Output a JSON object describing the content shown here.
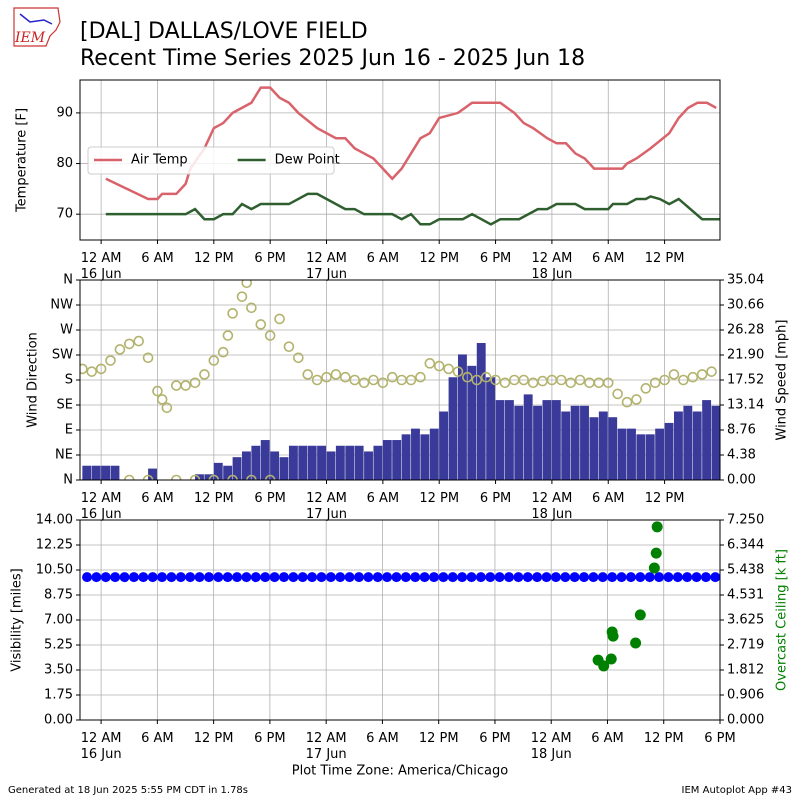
{
  "header": {
    "logo": "IEM",
    "title": [
      "[DAL] DALLAS/LOVE FIELD",
      "Recent Time Series 2025 Jun 16 - 2025 Jun 18"
    ]
  },
  "footer": {
    "left": "Generated at 18 Jun 2025 5:55 PM CDT in 1.78s",
    "right": "IEM Autoplot App #43"
  },
  "chart_data": [
    {
      "type": "line",
      "ylabel": "Temperature [F]",
      "xlim": [
        -2.25,
        65.9
      ],
      "ylim": [
        64.9,
        96.5
      ],
      "yticks": [
        70,
        80,
        90
      ],
      "grid": true,
      "legend": "center left",
      "xticks": [
        {
          "value": 0,
          "label": "12 AM\n16 Jun"
        },
        {
          "value": 6,
          "label": "6 AM"
        },
        {
          "value": 12,
          "label": "12 PM"
        },
        {
          "value": 18,
          "label": "6 PM"
        },
        {
          "value": 24,
          "label": "12 AM\n17 Jun"
        },
        {
          "value": 30,
          "label": "6 AM"
        },
        {
          "value": 36,
          "label": "12 PM"
        },
        {
          "value": 42,
          "label": "6 PM"
        },
        {
          "value": 48,
          "label": "12 AM\n18 Jun"
        },
        {
          "value": 54,
          "label": "6 AM"
        },
        {
          "value": 60,
          "label": "12 PM"
        }
      ],
      "series": [
        {
          "name": "Air Temp",
          "color": "#d9626b",
          "x": [
            0.5,
            5,
            6,
            6.5,
            8,
            9,
            9.5,
            11,
            12,
            13,
            14,
            16,
            17,
            18,
            19,
            20,
            21,
            23,
            25,
            26,
            27,
            28,
            29,
            31,
            32,
            34,
            35,
            36,
            38,
            39.5,
            42.5,
            44,
            45,
            46,
            47.5,
            48.5,
            49.5,
            50.5,
            51.5,
            52.5,
            55.5,
            56,
            57,
            58.5,
            60.5,
            61.5,
            62.5,
            63.5,
            64.5,
            65.5
          ],
          "values": [
            77,
            73,
            73,
            74,
            74,
            76,
            79,
            83,
            87,
            88,
            90,
            92,
            95,
            95,
            93,
            92,
            90,
            87,
            85,
            85,
            83,
            82,
            81,
            77,
            79,
            85,
            86,
            89,
            90,
            92,
            92,
            90,
            88,
            87,
            85,
            84,
            84,
            82,
            81,
            79,
            79,
            80,
            81,
            83,
            86,
            89,
            91,
            92,
            92,
            91
          ]
        },
        {
          "name": "Dew Point",
          "color": "#2f5f2f",
          "x": [
            0.5,
            9,
            10,
            11,
            12,
            13,
            14,
            15,
            16,
            17,
            20,
            22,
            23,
            26,
            27,
            28,
            31,
            32,
            33,
            34,
            35,
            36,
            38.5,
            39.5,
            41.5,
            42.5,
            44.5,
            46.5,
            47.5,
            48.5,
            50.5,
            51.5,
            54,
            54.5,
            56,
            57,
            58,
            58.5,
            59.5,
            60.5,
            61.5,
            64,
            66
          ],
          "values": [
            70,
            70,
            71,
            69,
            69,
            70,
            70,
            72,
            71,
            72,
            72,
            74,
            74,
            71,
            71,
            70,
            70,
            69,
            70,
            68,
            68,
            69,
            69,
            70,
            68,
            69,
            69,
            71,
            71,
            72,
            72,
            71,
            71,
            72,
            72,
            73,
            73,
            73.5,
            73,
            72,
            73,
            69,
            69
          ]
        }
      ]
    },
    {
      "type": "combo",
      "ylabel": "Wind Direction",
      "y2label": "Wind Speed [mph]",
      "xlim": [
        -2.25,
        65.9
      ],
      "ylim": [
        0,
        360
      ],
      "y2lim": [
        0,
        35.04
      ],
      "grid": true,
      "yticks": [
        {
          "value": 0,
          "label": "N"
        },
        {
          "value": 45,
          "label": "NE"
        },
        {
          "value": 90,
          "label": "E"
        },
        {
          "value": 135,
          "label": "SE"
        },
        {
          "value": 180,
          "label": "S"
        },
        {
          "value": 225,
          "label": "SW"
        },
        {
          "value": 270,
          "label": "W"
        },
        {
          "value": 315,
          "label": "NW"
        },
        {
          "value": 360,
          "label": "N"
        }
      ],
      "y2ticks": [
        {
          "value": 0,
          "label": "0.00"
        },
        4.38,
        8.76,
        13.14,
        17.52,
        {
          "value": 21.9,
          "label": "21.90"
        },
        26.28,
        30.66,
        35.04
      ],
      "xticks": [
        {
          "value": 0,
          "label": "12 AM\n16 Jun"
        },
        {
          "value": 6,
          "label": "6 AM"
        },
        {
          "value": 12,
          "label": "12 PM"
        },
        {
          "value": 18,
          "label": "6 PM"
        },
        {
          "value": 24,
          "label": "12 AM\n17 Jun"
        },
        {
          "value": 30,
          "label": "6 AM"
        },
        {
          "value": 36,
          "label": "12 PM"
        },
        {
          "value": 42,
          "label": "6 PM"
        },
        {
          "value": 48,
          "label": "12 AM\n18 Jun"
        },
        {
          "value": 54,
          "label": "6 AM"
        },
        {
          "value": 60,
          "label": "12 PM"
        }
      ],
      "series": [
        {
          "type": "bar",
          "axis": "y2",
          "color": "#3a3a9a",
          "x": [
            -2,
            -1,
            0,
            1,
            2,
            3,
            4,
            5,
            6,
            7,
            8,
            9,
            10,
            11,
            12,
            13,
            14,
            15,
            16,
            17,
            18,
            19,
            20,
            21,
            22,
            23,
            24,
            25,
            26,
            27,
            28,
            29,
            30,
            31,
            32,
            33,
            34,
            35,
            36,
            37,
            38,
            39,
            40,
            41,
            42,
            43,
            44,
            45,
            46,
            47,
            48,
            49,
            50,
            51,
            52,
            53,
            54,
            55,
            56,
            57,
            58,
            59,
            60,
            61,
            62,
            63,
            64,
            65
          ],
          "values": [
            2.5,
            2.5,
            2.5,
            2.5,
            0,
            0,
            0,
            2,
            0,
            0,
            0,
            0,
            1,
            1,
            3,
            2.5,
            4,
            5,
            6,
            7,
            5,
            4,
            6,
            6,
            6,
            6,
            5,
            6,
            6,
            6,
            5,
            6,
            7,
            7,
            8,
            9,
            8,
            9,
            12,
            18,
            22,
            20,
            24,
            18,
            14,
            14,
            13,
            15,
            13,
            14,
            14,
            12,
            13,
            13,
            11,
            12,
            11,
            9,
            9,
            8,
            8,
            9,
            10,
            12,
            13,
            12,
            14,
            13
          ]
        },
        {
          "type": "scatter",
          "color": "#b3b36e",
          "marker": "hollow",
          "x": [
            -2,
            -1,
            0,
            1,
            2,
            3,
            4,
            5,
            6,
            6.5,
            7,
            3,
            5,
            8,
            10,
            12,
            14,
            16,
            18,
            8,
            9,
            10,
            11,
            12,
            13,
            13.5,
            14,
            15,
            15.5,
            16,
            17,
            18,
            19,
            20,
            21,
            22,
            23,
            24,
            25,
            26,
            27,
            28,
            29,
            30,
            31,
            32,
            33,
            34,
            35,
            36,
            37,
            38,
            39,
            40,
            41,
            42,
            43,
            44,
            45,
            46,
            47,
            48,
            49,
            50,
            51,
            52,
            53,
            54,
            55,
            56,
            57,
            58,
            59,
            60,
            61,
            62,
            63,
            64,
            65
          ],
          "values": [
            200,
            195,
            200,
            215,
            235,
            245,
            250,
            220,
            160,
            145,
            130,
            0,
            0,
            0,
            0,
            0,
            0,
            0,
            0,
            170,
            170,
            175,
            190,
            215,
            230,
            260,
            300,
            330,
            355,
            310,
            280,
            260,
            290,
            240,
            220,
            190,
            180,
            185,
            190,
            185,
            180,
            175,
            180,
            175,
            185,
            180,
            180,
            185,
            210,
            205,
            200,
            195,
            185,
            180,
            185,
            180,
            175,
            180,
            180,
            175,
            178,
            180,
            180,
            175,
            180,
            175,
            175,
            175,
            155,
            140,
            145,
            165,
            175,
            180,
            190,
            180,
            185,
            190,
            195
          ]
        }
      ]
    },
    {
      "type": "scatter",
      "ylabel": "Visibility [miles]",
      "y2label": "Overcast Ceiling [k ft]",
      "y2label_color": "#008000",
      "xlabel": "Plot Time Zone: America/Chicago",
      "xlim": [
        -2.25,
        66
      ],
      "ylim": [
        0,
        14
      ],
      "y2lim": [
        0,
        7.25
      ],
      "grid": true,
      "yticks": [
        {
          "value": 0,
          "label": "0.00"
        },
        1.75,
        {
          "value": 3.5,
          "label": "3.50"
        },
        5.25,
        {
          "value": 7,
          "label": "7.00"
        },
        8.75,
        {
          "value": 10.5,
          "label": "10.50"
        },
        12.25,
        {
          "value": 14,
          "label": "14.00"
        }
      ],
      "y2ticks": [
        {
          "value": 0,
          "label": "0.000"
        },
        0.906,
        1.812,
        2.719,
        3.625,
        4.531,
        5.438,
        6.344,
        {
          "value": 7.25,
          "label": "7.250"
        }
      ],
      "xticks": [
        {
          "value": 0,
          "label": "12 AM\n16 Jun"
        },
        {
          "value": 6,
          "label": "6 AM"
        },
        {
          "value": 12,
          "label": "12 PM"
        },
        {
          "value": 18,
          "label": "6 PM"
        },
        {
          "value": 24,
          "label": "12 AM\n17 Jun"
        },
        {
          "value": 30,
          "label": "6 AM"
        },
        {
          "value": 36,
          "label": "12 PM"
        },
        {
          "value": 42,
          "label": "6 PM"
        },
        {
          "value": 48,
          "label": "12 AM\n18 Jun"
        },
        {
          "value": 54,
          "label": "6 AM"
        },
        {
          "value": 60,
          "label": "12 PM"
        },
        {
          "value": 66,
          "label": "6 PM"
        }
      ],
      "series": [
        {
          "type": "scatter",
          "color": "#0000ff",
          "x": [
            -1.5,
            -0.5,
            0.5,
            1.5,
            2.5,
            3.5,
            4.5,
            5.5,
            6.5,
            7.5,
            8.5,
            9.5,
            10.5,
            11.5,
            12.5,
            13.5,
            14.5,
            15.5,
            16.5,
            17.5,
            18.5,
            19.5,
            20.5,
            21.5,
            22.5,
            23.5,
            24.5,
            25.5,
            26.5,
            27.5,
            28.5,
            29.5,
            30.5,
            31.5,
            32.5,
            33.5,
            34.5,
            35.5,
            36.5,
            37.5,
            38.5,
            39.5,
            40.5,
            41.5,
            42.5,
            43.5,
            44.5,
            45.5,
            46.5,
            47.5,
            48.5,
            49.5,
            50.5,
            51.5,
            52.5,
            53.5,
            54.5,
            55.5,
            56.5,
            57.5,
            58.5,
            59.5,
            60.5,
            61.5,
            62.5,
            63.5,
            64.5,
            65.5
          ],
          "values": [
            10,
            10,
            10,
            10,
            10,
            10,
            10,
            10,
            10,
            10,
            10,
            10,
            10,
            10,
            10,
            10,
            10,
            10,
            10,
            10,
            10,
            10,
            10,
            10,
            10,
            10,
            10,
            10,
            10,
            10,
            10,
            10,
            10,
            10,
            10,
            10,
            10,
            10,
            10,
            10,
            10,
            10,
            10,
            10,
            10,
            10,
            10,
            10,
            10,
            10,
            10,
            10,
            10,
            10,
            10,
            10,
            10,
            10,
            10,
            10,
            10,
            10,
            10,
            10,
            10,
            10,
            10,
            10
          ]
        },
        {
          "type": "scatter",
          "axis": "y2",
          "color": "#008000",
          "x": [
            53,
            53.6,
            54.4,
            54.6,
            54.5,
            57,
            57.5,
            59,
            59.2,
            59.3
          ],
          "values": [
            2.17,
            1.96,
            2.21,
            3.04,
            3.19,
            2.79,
            3.81,
            5.51,
            6.05,
            7.0
          ]
        }
      ]
    }
  ]
}
